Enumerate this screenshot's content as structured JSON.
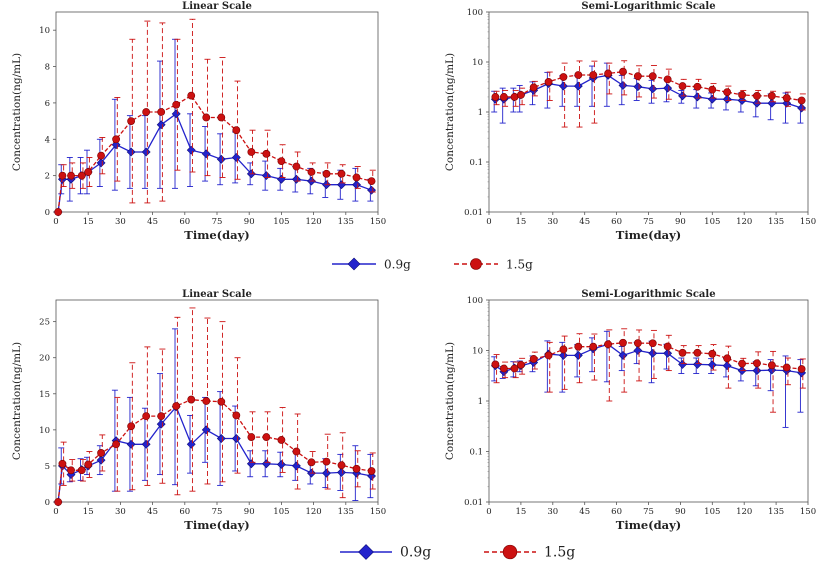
{
  "colors": {
    "blue": "#2323cc",
    "red": "#cc1111",
    "axis": "#333333"
  },
  "legends": [
    {
      "items": [
        {
          "label": "0.9g",
          "marker": "diamond",
          "color": "#2323cc",
          "dash": false
        },
        {
          "label": "1.5g",
          "marker": "circle",
          "color": "#cc1111",
          "dash": true
        }
      ]
    },
    {
      "items": [
        {
          "label": "0.9g",
          "marker": "diamond",
          "color": "#2323cc",
          "dash": false
        },
        {
          "label": "1.5g",
          "marker": "circle",
          "color": "#cc1111",
          "dash": true
        }
      ]
    }
  ],
  "chart_data": [
    {
      "id": "top-linear",
      "type": "line",
      "title": "Linear Scale",
      "xlabel": "Time(day)",
      "ylabel": "Concentration(ng/mL)",
      "scale": "linear",
      "xlim": [
        0,
        150
      ],
      "ylim": [
        0,
        11
      ],
      "xticks": [
        0,
        15,
        30,
        45,
        60,
        75,
        90,
        105,
        120,
        135,
        150
      ],
      "yticks": [
        0,
        2,
        4,
        6,
        8,
        10
      ],
      "ytick_labels": [
        "0",
        "2",
        "4",
        "6",
        "8",
        "10"
      ],
      "x": [
        1,
        3,
        7,
        12,
        15,
        21,
        28,
        35,
        42,
        49,
        56,
        63,
        70,
        77,
        84,
        91,
        98,
        105,
        112,
        119,
        126,
        133,
        140,
        147
      ],
      "series": [
        {
          "name": "0.9g",
          "color": "#2323cc",
          "marker": "diamond",
          "values": [
            0,
            1.8,
            1.8,
            2.0,
            2.2,
            2.7,
            3.7,
            3.3,
            3.3,
            4.8,
            5.4,
            3.4,
            3.2,
            2.9,
            3.0,
            2.1,
            2.0,
            1.8,
            1.8,
            1.7,
            1.5,
            1.5,
            1.5,
            1.2
          ],
          "err": [
            0,
            0.8,
            1.2,
            1.0,
            1.2,
            1.3,
            2.5,
            2.0,
            2.0,
            3.5,
            4.1,
            2.0,
            1.5,
            1.4,
            1.4,
            0.6,
            0.8,
            0.6,
            0.7,
            0.7,
            0.7,
            0.8,
            0.9,
            0.6
          ]
        },
        {
          "name": "1.5g",
          "color": "#cc1111",
          "marker": "circle",
          "values": [
            0,
            2.0,
            2.0,
            2.0,
            2.2,
            3.1,
            4.0,
            5.0,
            5.5,
            5.5,
            5.9,
            6.4,
            5.2,
            5.2,
            4.5,
            3.3,
            3.2,
            2.8,
            2.5,
            2.2,
            2.1,
            2.1,
            1.9,
            1.7
          ],
          "err": [
            0,
            0.6,
            0.7,
            0.7,
            0.8,
            1.0,
            2.3,
            4.5,
            5.0,
            4.9,
            3.6,
            4.2,
            3.2,
            3.3,
            2.7,
            1.2,
            1.3,
            0.9,
            0.8,
            0.5,
            0.6,
            0.5,
            0.6,
            0.6
          ]
        }
      ]
    },
    {
      "id": "top-log",
      "type": "line",
      "title": "Semi-Logarithmic Scale",
      "xlabel": "Time(day)",
      "ylabel": "Concentration(ng/mL)",
      "scale": "log",
      "xlim": [
        0,
        150
      ],
      "ylim": [
        0.01,
        100
      ],
      "xticks": [
        0,
        15,
        30,
        45,
        60,
        75,
        90,
        105,
        120,
        135,
        150
      ],
      "yticks": [
        0.01,
        0.1,
        1,
        10,
        100
      ],
      "ytick_labels": [
        "0.01",
        "0.1",
        "1",
        "10",
        "100"
      ],
      "x": [
        3,
        7,
        12,
        15,
        21,
        28,
        35,
        42,
        49,
        56,
        63,
        70,
        77,
        84,
        91,
        98,
        105,
        112,
        119,
        126,
        133,
        140,
        147
      ],
      "series": [
        {
          "name": "0.9g",
          "color": "#2323cc",
          "marker": "diamond",
          "values": [
            1.8,
            1.8,
            2.0,
            2.2,
            2.7,
            3.7,
            3.3,
            3.3,
            4.8,
            5.4,
            3.4,
            3.2,
            2.9,
            3.0,
            2.1,
            2.0,
            1.8,
            1.8,
            1.7,
            1.5,
            1.5,
            1.5,
            1.2
          ],
          "err": [
            0.8,
            1.2,
            1.0,
            1.2,
            1.3,
            2.5,
            2.0,
            2.0,
            3.5,
            4.1,
            2.0,
            1.5,
            1.4,
            1.4,
            0.6,
            0.8,
            0.6,
            0.7,
            0.7,
            0.7,
            0.8,
            0.9,
            0.6
          ]
        },
        {
          "name": "1.5g",
          "color": "#cc1111",
          "marker": "circle",
          "values": [
            2.0,
            2.0,
            2.0,
            2.2,
            3.1,
            4.0,
            5.0,
            5.5,
            5.5,
            5.9,
            6.4,
            5.2,
            5.2,
            4.5,
            3.3,
            3.2,
            2.8,
            2.5,
            2.2,
            2.1,
            2.1,
            1.9,
            1.7
          ],
          "err": [
            0.6,
            0.7,
            0.7,
            0.8,
            1.0,
            2.3,
            4.5,
            5.0,
            4.9,
            3.6,
            4.2,
            3.2,
            3.3,
            2.7,
            1.2,
            1.3,
            0.9,
            0.8,
            0.5,
            0.6,
            0.5,
            0.6,
            0.6
          ]
        }
      ]
    },
    {
      "id": "bottom-linear",
      "type": "line",
      "title": "Linear Scale",
      "xlabel": "Time(day)",
      "ylabel": "Concentration(ng/mL)",
      "scale": "linear",
      "xlim": [
        0,
        150
      ],
      "ylim": [
        0,
        28
      ],
      "xticks": [
        0,
        15,
        30,
        45,
        60,
        75,
        90,
        105,
        120,
        135,
        150
      ],
      "yticks": [
        0,
        5,
        10,
        15,
        20,
        25
      ],
      "ytick_labels": [
        "0",
        "5",
        "10",
        "15",
        "20",
        "25"
      ],
      "x": [
        1,
        3,
        7,
        12,
        15,
        21,
        28,
        35,
        42,
        49,
        56,
        63,
        70,
        77,
        84,
        91,
        98,
        105,
        112,
        119,
        126,
        133,
        140,
        147
      ],
      "series": [
        {
          "name": "0.9g",
          "color": "#2323cc",
          "marker": "diamond",
          "values": [
            0,
            5.0,
            3.8,
            4.5,
            5.0,
            5.8,
            8.5,
            8.0,
            8.0,
            10.8,
            13.2,
            8.0,
            10.0,
            8.8,
            8.8,
            5.3,
            5.3,
            5.2,
            5.0,
            4.0,
            4.0,
            4.1,
            4.0,
            3.6
          ],
          "err": [
            0,
            2.5,
            1.0,
            1.5,
            1.2,
            2.0,
            7.0,
            6.5,
            5.0,
            7.0,
            10.8,
            4.0,
            4.5,
            6.5,
            4.5,
            1.8,
            1.8,
            1.7,
            2.0,
            1.5,
            2.0,
            2.5,
            3.8,
            3.0
          ]
        },
        {
          "name": "1.5g",
          "color": "#cc1111",
          "marker": "circle",
          "values": [
            0,
            5.3,
            4.4,
            4.4,
            5.2,
            6.8,
            8.0,
            10.5,
            11.9,
            11.9,
            13.3,
            14.2,
            14.0,
            13.9,
            12.0,
            9.0,
            9.0,
            8.6,
            7.0,
            5.5,
            5.6,
            5.1,
            4.6,
            4.3
          ],
          "err": [
            0,
            3.0,
            1.5,
            1.5,
            1.8,
            2.5,
            6.5,
            8.8,
            9.6,
            9.3,
            12.3,
            12.7,
            11.5,
            11.1,
            8.0,
            3.5,
            3.5,
            4.5,
            5.2,
            1.5,
            3.8,
            4.5,
            2.5,
            2.5
          ]
        }
      ]
    },
    {
      "id": "bottom-log",
      "type": "line",
      "title": "Semi-Logarithmic Scale",
      "xlabel": "Time(day)",
      "ylabel": "Concentration(ng/mL)",
      "scale": "log",
      "xlim": [
        0,
        150
      ],
      "ylim": [
        0.01,
        100
      ],
      "xticks": [
        0,
        15,
        30,
        45,
        60,
        75,
        90,
        105,
        120,
        135,
        150
      ],
      "yticks": [
        0.01,
        0.1,
        1,
        10,
        100
      ],
      "ytick_labels": [
        "0.01",
        "0.1",
        "1",
        "10",
        "100"
      ],
      "x": [
        3,
        7,
        12,
        15,
        21,
        28,
        35,
        42,
        49,
        56,
        63,
        70,
        77,
        84,
        91,
        98,
        105,
        112,
        119,
        126,
        133,
        140,
        147
      ],
      "series": [
        {
          "name": "0.9g",
          "color": "#2323cc",
          "marker": "diamond",
          "values": [
            5.0,
            3.8,
            4.5,
            5.0,
            5.8,
            8.5,
            8.0,
            8.0,
            10.8,
            13.2,
            8.0,
            10.0,
            8.8,
            8.8,
            5.3,
            5.3,
            5.2,
            5.0,
            4.0,
            4.0,
            4.1,
            4.0,
            3.6
          ],
          "err": [
            2.5,
            1.0,
            1.5,
            1.2,
            2.0,
            7.0,
            6.5,
            5.0,
            7.0,
            10.8,
            4.0,
            4.5,
            6.5,
            4.5,
            1.8,
            1.8,
            1.7,
            2.0,
            1.5,
            2.0,
            2.5,
            3.8,
            3.0
          ]
        },
        {
          "name": "1.5g",
          "color": "#cc1111",
          "marker": "circle",
          "values": [
            5.3,
            4.4,
            4.4,
            5.2,
            6.8,
            8.0,
            10.5,
            11.9,
            11.9,
            13.3,
            14.2,
            14.0,
            13.9,
            12.0,
            9.0,
            9.0,
            8.6,
            7.0,
            5.5,
            5.6,
            5.1,
            4.6,
            4.3
          ],
          "err": [
            3.0,
            1.5,
            1.5,
            1.8,
            2.5,
            6.5,
            8.8,
            9.6,
            9.3,
            12.3,
            12.7,
            11.5,
            11.1,
            8.0,
            3.5,
            3.5,
            4.5,
            5.2,
            1.5,
            3.8,
            4.5,
            2.5,
            2.5
          ]
        }
      ]
    }
  ]
}
